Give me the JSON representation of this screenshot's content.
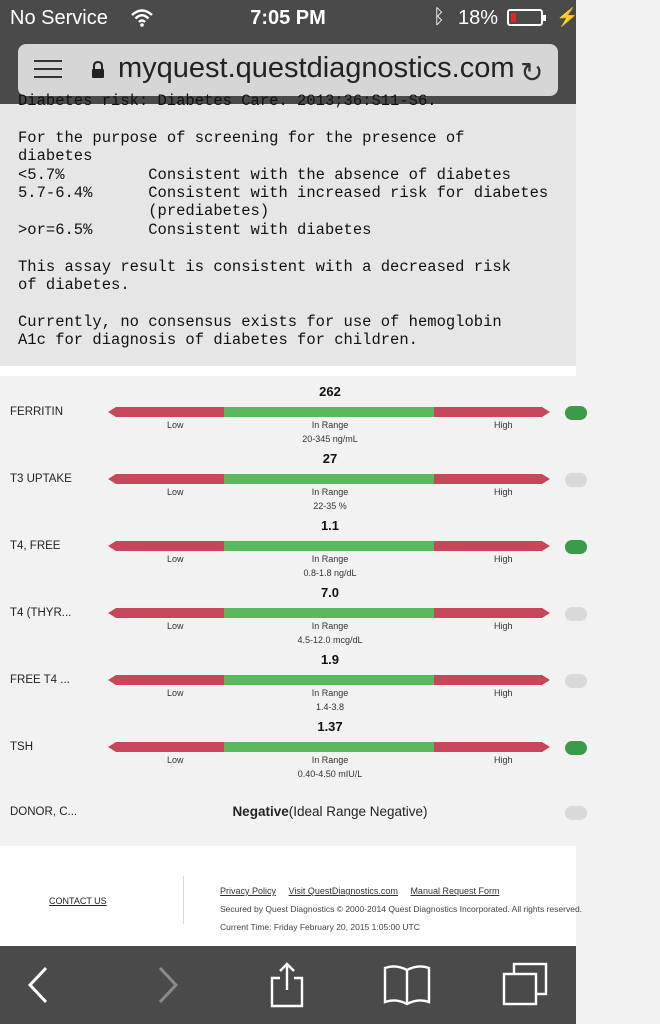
{
  "status_bar": {
    "carrier": "No Service",
    "time": "7:05 PM",
    "battery_percent": "18%",
    "battery_level": 0.18
  },
  "browser": {
    "url": "myquest.questdiagnostics.com"
  },
  "report_text": "Diabetes risk: Diabetes Care. 2013;36:S11-S6.\n\nFor the purpose of screening for the presence of\ndiabetes\n<5.7%         Consistent with the absence of diabetes\n5.7-6.4%      Consistent with increased risk for diabetes\n              (prediabetes)\n>or=6.5%      Consistent with diabetes\n\nThis assay result is consistent with a decreased risk\nof diabetes.\n\nCurrently, no consensus exists for use of hemoglobin\nA1c for diagnosis of diabetes for children.",
  "results": [
    {
      "name": "FERRITIN",
      "value": "262",
      "low_label": "Low",
      "mid_label": "In Range",
      "high_label": "High",
      "range": "20-345 ng/mL",
      "toggle": "on"
    },
    {
      "name": "T3 UPTAKE",
      "value": "27",
      "low_label": "Low",
      "mid_label": "In Range",
      "high_label": "High",
      "range": "22-35 %",
      "toggle": "off"
    },
    {
      "name": "T4, FREE",
      "value": "1.1",
      "low_label": "Low",
      "mid_label": "In Range",
      "high_label": "High",
      "range": "0.8-1.8 ng/dL",
      "toggle": "on"
    },
    {
      "name": "T4 (THYR...",
      "value": "7.0",
      "low_label": "Low",
      "mid_label": "In Range",
      "high_label": "High",
      "range": "4.5-12.0 mcg/dL",
      "toggle": "off"
    },
    {
      "name": "FREE T4 ...",
      "value": "1.9",
      "low_label": "Low",
      "mid_label": "In Range",
      "high_label": "High",
      "range": "1.4-3.8",
      "toggle": "off"
    },
    {
      "name": "TSH",
      "value": "1.37",
      "low_label": "Low",
      "mid_label": "In Range",
      "high_label": "High",
      "range": "0.40-4.50 mIU/L",
      "toggle": "on"
    }
  ],
  "donor": {
    "name": "DONOR, C...",
    "result": "Negative",
    "ideal": "(Ideal Range Negative)",
    "toggle": "off"
  },
  "footer": {
    "contact": "CONTACT US",
    "links": [
      "Privacy Policy",
      "Visit QuestDiagnostics.com",
      "Manual Request Form"
    ],
    "secured": "Secured by Quest Diagnostics   © 2000-2014 Quest Diagnostics Incorporated. All rights reserved.",
    "current_time": "Current Time: Friday February 20, 2015 1:05:00 UTC"
  },
  "colors": {
    "bar_low_high": "#c8465a",
    "bar_in_range": "#5cb85c",
    "toggle_on": "#3a9b48",
    "toggle_off": "#d9d9d9",
    "chrome": "#4a4a4a"
  },
  "icons": [
    "wifi-icon",
    "bluetooth-icon",
    "battery-icon",
    "charging-icon",
    "menu-icon",
    "lock-icon",
    "reload-icon",
    "back-icon",
    "forward-icon",
    "share-icon",
    "bookmarks-icon",
    "tabs-icon"
  ]
}
